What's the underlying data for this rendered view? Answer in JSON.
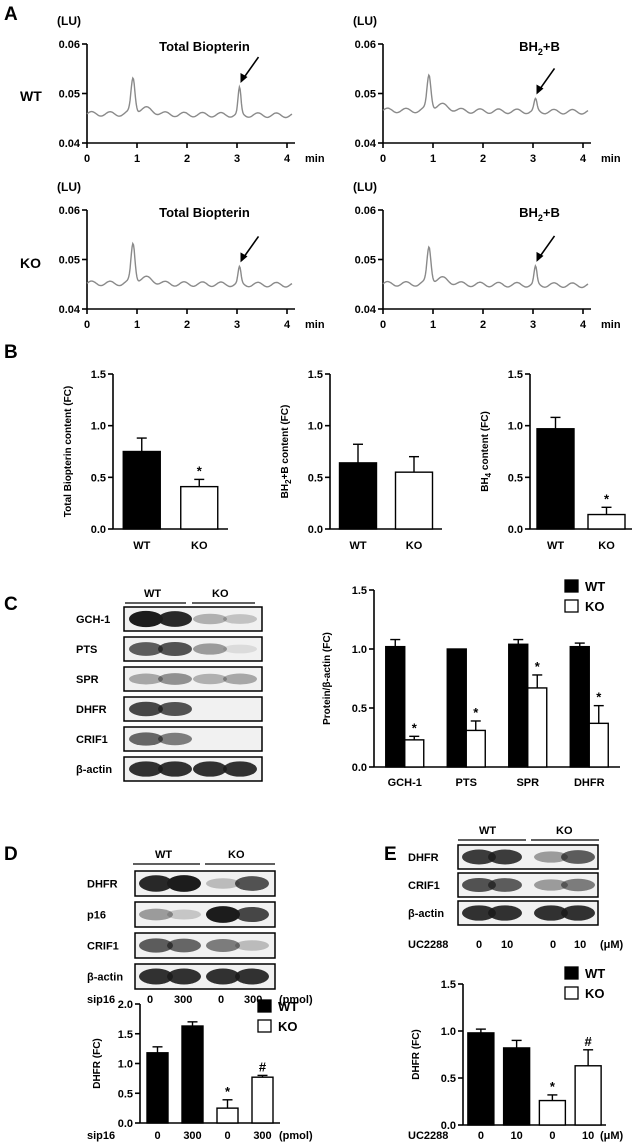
{
  "panels": {
    "a": "A",
    "b": "B",
    "c": "C",
    "d": "D",
    "e": "E"
  },
  "chromatograms": {
    "y_unit": "(LU)",
    "x_unit": "min",
    "y_ticks": [
      "0.06",
      "0.05",
      "0.04"
    ],
    "x_ticks": [
      "0",
      "1",
      "2",
      "3",
      "4"
    ],
    "row_labels": [
      "WT",
      "KO"
    ],
    "traces": [
      {
        "row": "WT",
        "annotation": "Total Biopterin",
        "subscript": "",
        "after": "",
        "baseline": 0.0459,
        "peak1": 0.0527,
        "peak2": 0.0511
      },
      {
        "row": "WT",
        "annotation": "BH",
        "subscript": "2",
        "after": "+B",
        "baseline": 0.0466,
        "peak1": 0.0533,
        "peak2": 0.0488
      },
      {
        "row": "KO",
        "annotation": "Total Biopterin",
        "subscript": "",
        "after": "",
        "baseline": 0.0452,
        "peak1": 0.0528,
        "peak2": 0.0484
      },
      {
        "row": "KO",
        "annotation": "BH",
        "subscript": "2",
        "after": "+B",
        "baseline": 0.0451,
        "peak1": 0.0521,
        "peak2": 0.0485
      }
    ]
  },
  "panel_b": [
    {
      "ylabel": "Total Biopterin content (FC)",
      "ylabel_parts": [
        "Total Biopterin content (FC)",
        "",
        ""
      ],
      "ylim": [
        0,
        1.5
      ],
      "y_ticks": [
        "0.0",
        "0.5",
        "1.0",
        "1.5"
      ],
      "categories": [
        "WT",
        "KO"
      ],
      "values": [
        0.75,
        0.41
      ],
      "errors": [
        0.13,
        0.07
      ],
      "marks": [
        "",
        "*"
      ]
    },
    {
      "ylabel": "BH2+B content (FC)",
      "ylabel_parts": [
        "BH",
        "2",
        "+B  content (FC)"
      ],
      "ylim": [
        0,
        1.5
      ],
      "y_ticks": [
        "0.0",
        "0.5",
        "1.0",
        "1.5"
      ],
      "categories": [
        "WT",
        "KO"
      ],
      "values": [
        0.64,
        0.55
      ],
      "errors": [
        0.18,
        0.15
      ],
      "marks": [
        "",
        ""
      ]
    },
    {
      "ylabel": "BH4 content (FC)",
      "ylabel_parts": [
        "BH",
        "4",
        " content (FC)"
      ],
      "ylim": [
        0,
        1.5
      ],
      "y_ticks": [
        "0.0",
        "0.5",
        "1.0",
        "1.5"
      ],
      "categories": [
        "WT",
        "KO"
      ],
      "values": [
        0.97,
        0.14
      ],
      "errors": [
        0.11,
        0.07
      ],
      "marks": [
        "",
        "*"
      ]
    }
  ],
  "blot_c": {
    "groups": [
      "WT",
      "KO"
    ],
    "rows": [
      "GCH-1",
      "PTS",
      "SPR",
      "DHFR",
      "CRIF1",
      "β-actin"
    ]
  },
  "chart_data": [
    {
      "type": "bar",
      "ylabel": "Total Biopterin content (FC)",
      "categories": [
        "WT",
        "KO"
      ],
      "values": [
        0.75,
        0.41
      ],
      "ylim": [
        0,
        1.5
      ]
    },
    {
      "type": "bar",
      "ylabel": "BH2+B content (FC)",
      "categories": [
        "WT",
        "KO"
      ],
      "values": [
        0.64,
        0.55
      ],
      "ylim": [
        0,
        1.5
      ]
    },
    {
      "type": "bar",
      "ylabel": "BH4 content (FC)",
      "categories": [
        "WT",
        "KO"
      ],
      "values": [
        0.97,
        0.14
      ],
      "ylim": [
        0,
        1.5
      ]
    },
    {
      "type": "bar",
      "ylabel": "Protein/β-actin (FC)",
      "categories": [
        "GCH-1",
        "PTS",
        "SPR",
        "DHFR"
      ],
      "ylim": [
        0,
        1.5
      ],
      "y_ticks": [
        "0.0",
        "0.5",
        "1.0",
        "1.5"
      ],
      "legend": "top-right",
      "series": [
        {
          "name": "WT",
          "values": [
            1.02,
            1.0,
            1.04,
            1.02
          ],
          "errors": [
            0.06,
            0.0,
            0.04,
            0.03
          ],
          "marks": [
            "",
            "",
            "",
            ""
          ]
        },
        {
          "name": "KO",
          "values": [
            0.23,
            0.31,
            0.67,
            0.37
          ],
          "errors": [
            0.03,
            0.08,
            0.11,
            0.15
          ],
          "marks": [
            "*",
            "*",
            "*",
            "*"
          ]
        }
      ]
    },
    {
      "type": "bar",
      "ylabel": "DHFR (FC)",
      "categories": [
        "0",
        "300",
        "0",
        "300"
      ],
      "xlabel": "sip16",
      "unit": "(pmol)",
      "ylim": [
        0,
        2.0
      ],
      "y_ticks": [
        "0.0",
        "0.5",
        "1.0",
        "1.5",
        "2.0"
      ],
      "legend": "top-right",
      "series": [
        {
          "name": "WT",
          "values": [
            1.18,
            1.63,
            null,
            null
          ],
          "errors": [
            0.1,
            0.07,
            0,
            0
          ],
          "marks": [
            "",
            "",
            "",
            ""
          ]
        },
        {
          "name": "KO",
          "values": [
            null,
            null,
            0.25,
            0.77
          ],
          "errors": [
            0,
            0,
            0.14,
            0.03
          ],
          "marks": [
            "",
            "",
            "*",
            "#"
          ]
        }
      ]
    },
    {
      "type": "bar",
      "ylabel": "DHFR (FC)",
      "categories": [
        "0",
        "10",
        "0",
        "10"
      ],
      "xlabel": "UC2288",
      "unit": "(μM)",
      "ylim": [
        0,
        1.5
      ],
      "y_ticks": [
        "0.0",
        "0.5",
        "1.0",
        "1.5"
      ],
      "legend": "top-right",
      "series": [
        {
          "name": "WT",
          "values": [
            0.98,
            0.82,
            null,
            null
          ],
          "errors": [
            0.04,
            0.08,
            0,
            0
          ],
          "marks": [
            "",
            "",
            "",
            ""
          ]
        },
        {
          "name": "KO",
          "values": [
            null,
            null,
            0.26,
            0.63
          ],
          "errors": [
            0,
            0,
            0.06,
            0.17
          ],
          "marks": [
            "",
            "",
            "*",
            "#"
          ]
        }
      ]
    }
  ],
  "blot_d": {
    "groups": [
      "WT",
      "KO"
    ],
    "rows": [
      "DHFR",
      "p16",
      "CRIF1",
      "β-actin"
    ],
    "treatment": "sip16",
    "doses": [
      "0",
      "300",
      "0",
      "300"
    ],
    "unit": "(pmol)"
  },
  "blot_e": {
    "groups": [
      "WT",
      "KO"
    ],
    "rows": [
      "DHFR",
      "CRIF1",
      "β-actin"
    ],
    "treatment": "UC2288",
    "doses": [
      "0",
      "10",
      "0",
      "10"
    ],
    "unit": "(μM)"
  },
  "colors": {
    "wt_bar": "#000000",
    "ko_bar": "#ffffff",
    "trace": "#8a8a8a",
    "band": "#1c1c1c"
  }
}
